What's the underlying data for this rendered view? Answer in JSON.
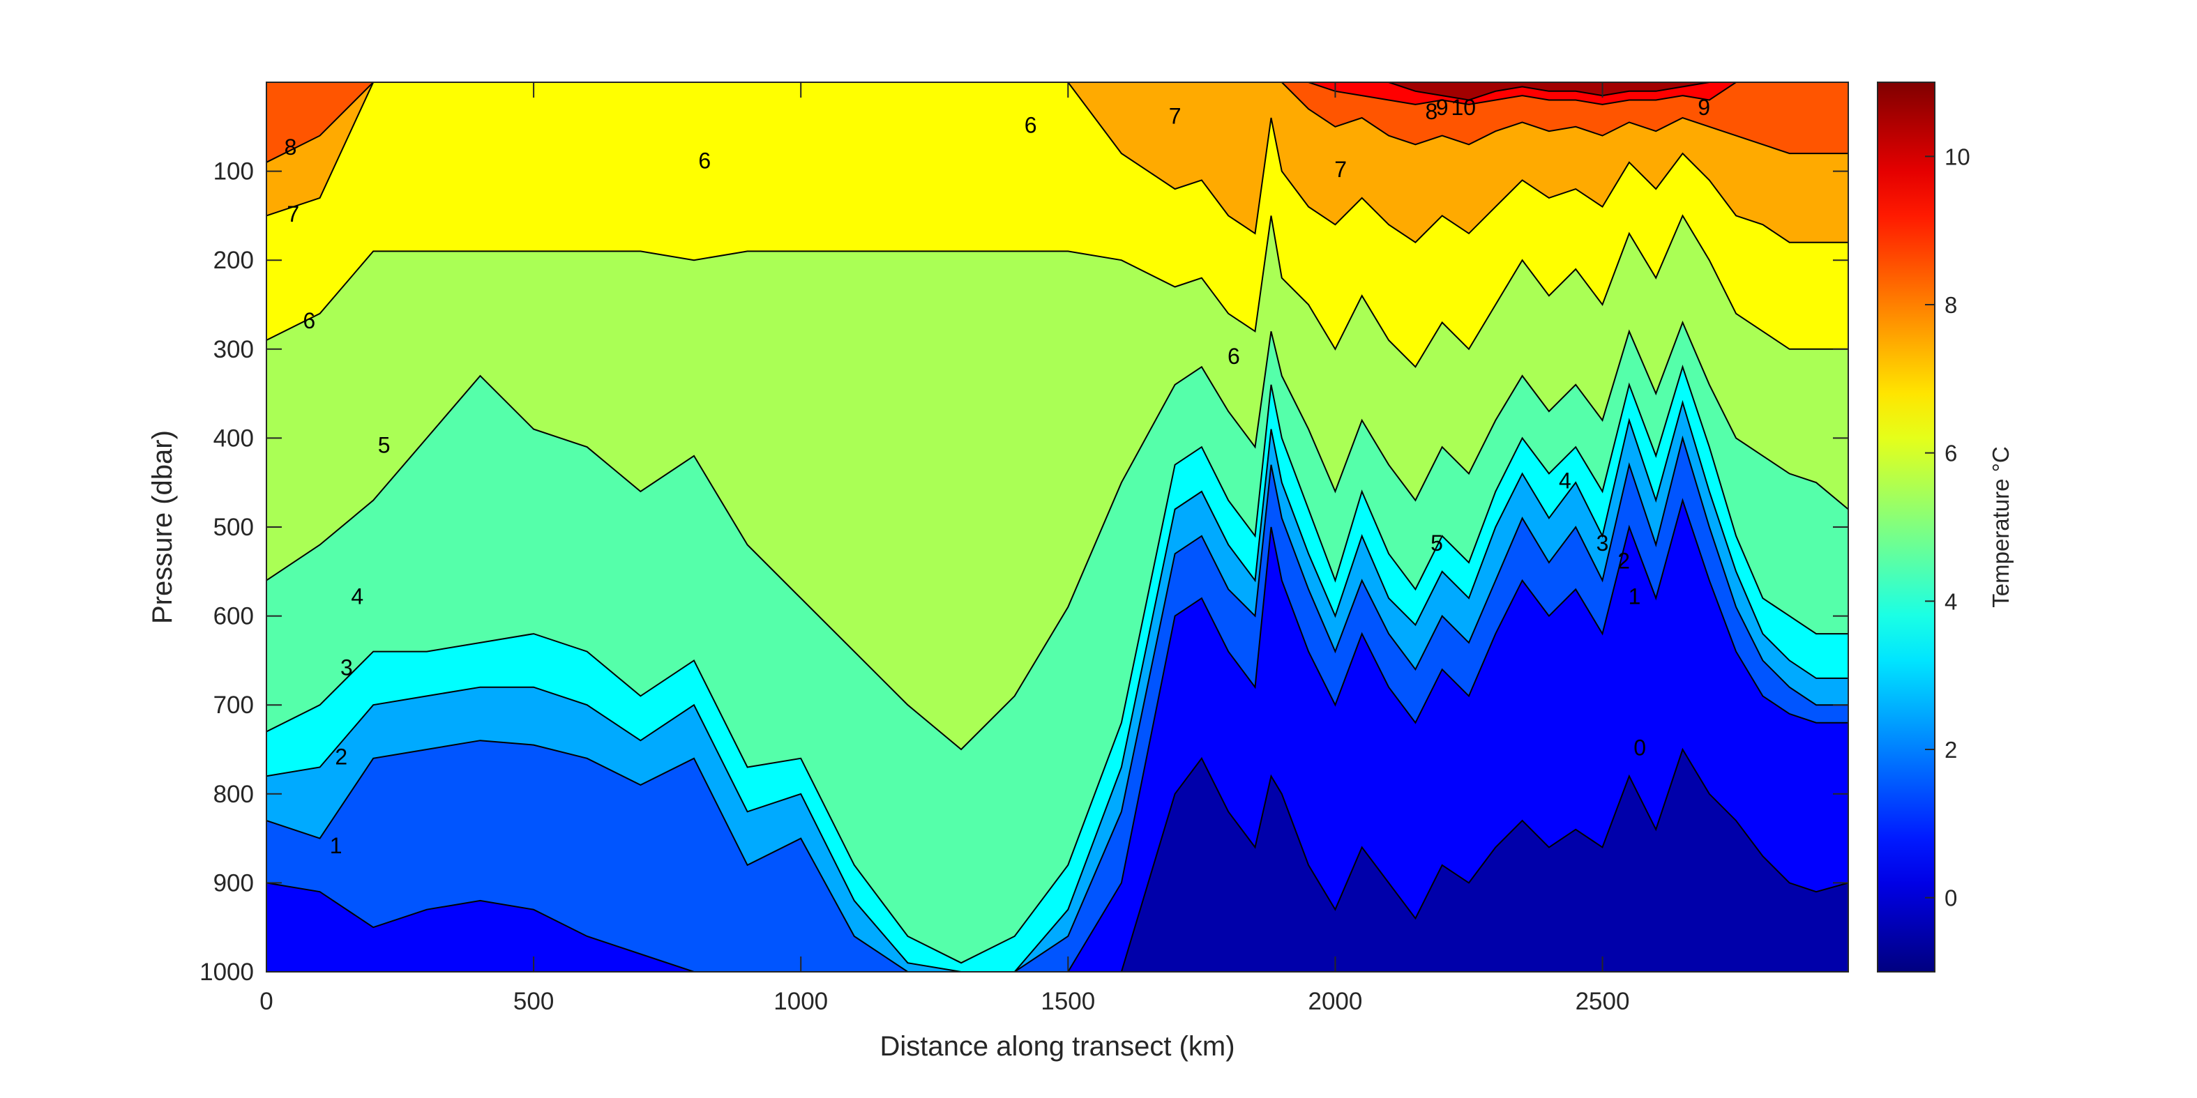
{
  "chart_data": {
    "type": "heatmap",
    "subtype": "filled-contour",
    "title": "",
    "xlabel": "Distance along transect (km)",
    "ylabel": "Pressure (dbar)",
    "colorbar_label": "Temperature °C",
    "colormap": "jet",
    "xlim": [
      0,
      2960
    ],
    "ylim": [
      0,
      1000
    ],
    "y_reversed": true,
    "clim": [
      -1,
      11
    ],
    "x_ticks": [
      0,
      500,
      1000,
      1500,
      2000,
      2500
    ],
    "x_tick_labels": [
      "0",
      "500",
      "1000",
      "1500",
      "2000",
      "2500"
    ],
    "y_ticks": [
      100,
      200,
      300,
      400,
      500,
      600,
      700,
      800,
      900,
      1000
    ],
    "y_tick_labels": [
      "100",
      "200",
      "300",
      "400",
      "500",
      "600",
      "700",
      "800",
      "900",
      "1000"
    ],
    "colorbar_ticks": [
      0,
      2,
      4,
      6,
      8,
      10
    ],
    "colorbar_tick_labels": [
      "0",
      "2",
      "4",
      "6",
      "8",
      "10"
    ],
    "grid": false,
    "contour_levels": [
      0,
      1,
      2,
      3,
      4,
      5,
      6,
      7,
      8,
      9,
      10
    ],
    "isotherm_depths": {
      "x": [
        0,
        100,
        200,
        300,
        400,
        500,
        600,
        700,
        800,
        900,
        1000,
        1100,
        1200,
        1300,
        1400,
        1500,
        1600,
        1700,
        1750,
        1800,
        1850,
        1880,
        1900,
        1950,
        2000,
        2050,
        2100,
        2150,
        2200,
        2250,
        2300,
        2350,
        2400,
        2450,
        2500,
        2550,
        2600,
        2650,
        2700,
        2750,
        2800,
        2850,
        2900,
        2960
      ],
      "t0": [
        1000,
        1000,
        1000,
        1000,
        1000,
        1000,
        1000,
        1000,
        1000,
        1000,
        1000,
        1000,
        1000,
        1000,
        1000,
        1000,
        1000,
        800,
        760,
        820,
        860,
        780,
        800,
        880,
        930,
        860,
        900,
        940,
        880,
        900,
        860,
        830,
        860,
        840,
        860,
        780,
        840,
        750,
        800,
        830,
        870,
        900,
        910,
        900
      ],
      "t1": [
        900,
        910,
        950,
        930,
        920,
        930,
        960,
        980,
        1000,
        1000,
        1000,
        1000,
        1000,
        1000,
        1000,
        1000,
        900,
        600,
        580,
        640,
        680,
        500,
        560,
        640,
        700,
        620,
        680,
        720,
        660,
        690,
        620,
        560,
        600,
        570,
        620,
        500,
        580,
        470,
        560,
        640,
        690,
        710,
        720,
        720
      ],
      "t2": [
        830,
        850,
        760,
        750,
        740,
        745,
        760,
        790,
        760,
        880,
        850,
        960,
        1000,
        1000,
        1000,
        960,
        820,
        530,
        510,
        570,
        600,
        430,
        490,
        570,
        640,
        560,
        620,
        660,
        600,
        630,
        560,
        490,
        540,
        500,
        560,
        430,
        520,
        400,
        500,
        590,
        650,
        680,
        700,
        700
      ],
      "t3": [
        780,
        770,
        700,
        690,
        680,
        680,
        700,
        740,
        700,
        820,
        800,
        920,
        990,
        1000,
        1000,
        930,
        770,
        480,
        460,
        520,
        560,
        390,
        450,
        530,
        600,
        510,
        580,
        610,
        550,
        580,
        500,
        440,
        490,
        450,
        510,
        380,
        470,
        360,
        460,
        550,
        620,
        650,
        670,
        670
      ],
      "t4": [
        730,
        700,
        640,
        640,
        630,
        620,
        640,
        690,
        650,
        770,
        760,
        880,
        960,
        990,
        960,
        880,
        720,
        430,
        410,
        470,
        510,
        340,
        400,
        480,
        560,
        460,
        530,
        570,
        510,
        540,
        460,
        400,
        440,
        410,
        460,
        340,
        420,
        320,
        410,
        510,
        580,
        600,
        620,
        620
      ],
      "t5": [
        560,
        520,
        470,
        400,
        330,
        390,
        410,
        460,
        420,
        520,
        580,
        640,
        700,
        750,
        690,
        590,
        450,
        340,
        320,
        370,
        410,
        280,
        330,
        390,
        460,
        380,
        430,
        470,
        410,
        440,
        380,
        330,
        370,
        340,
        380,
        280,
        350,
        270,
        340,
        400,
        420,
        440,
        450,
        480
      ],
      "t6": [
        290,
        260,
        190,
        190,
        190,
        190,
        190,
        190,
        200,
        190,
        190,
        190,
        190,
        190,
        190,
        190,
        200,
        230,
        220,
        260,
        280,
        150,
        220,
        250,
        300,
        240,
        290,
        320,
        270,
        300,
        250,
        200,
        240,
        210,
        250,
        170,
        220,
        150,
        200,
        260,
        280,
        300,
        300,
        300
      ],
      "t7": [
        150,
        130,
        0,
        0,
        0,
        0,
        0,
        0,
        0,
        0,
        0,
        0,
        0,
        0,
        0,
        0,
        80,
        120,
        110,
        150,
        170,
        40,
        100,
        140,
        160,
        130,
        160,
        180,
        150,
        170,
        140,
        110,
        130,
        120,
        140,
        90,
        120,
        80,
        110,
        150,
        160,
        180,
        180,
        180
      ],
      "t8": [
        90,
        60,
        0,
        0,
        0,
        0,
        0,
        0,
        0,
        0,
        0,
        0,
        0,
        0,
        0,
        0,
        0,
        0,
        0,
        0,
        0,
        0,
        0,
        30,
        50,
        40,
        60,
        70,
        60,
        70,
        55,
        45,
        55,
        50,
        60,
        45,
        55,
        40,
        50,
        60,
        70,
        80,
        80,
        80
      ],
      "t9": [
        0,
        0,
        0,
        0,
        0,
        0,
        0,
        0,
        0,
        0,
        0,
        0,
        0,
        0,
        0,
        0,
        0,
        0,
        0,
        0,
        0,
        0,
        0,
        0,
        10,
        15,
        20,
        25,
        20,
        25,
        20,
        15,
        20,
        20,
        25,
        20,
        20,
        15,
        20,
        0,
        0,
        0,
        0,
        0
      ],
      "t10": [
        0,
        0,
        0,
        0,
        0,
        0,
        0,
        0,
        0,
        0,
        0,
        0,
        0,
        0,
        0,
        0,
        0,
        0,
        0,
        0,
        0,
        0,
        0,
        0,
        0,
        0,
        0,
        10,
        15,
        20,
        10,
        5,
        10,
        10,
        15,
        10,
        10,
        5,
        0,
        0,
        0,
        0,
        0,
        0
      ]
    },
    "contour_labels": [
      {
        "text": "8",
        "x": 45,
        "y": 75
      },
      {
        "text": "7",
        "x": 50,
        "y": 150
      },
      {
        "text": "6",
        "x": 80,
        "y": 270
      },
      {
        "text": "5",
        "x": 220,
        "y": 410
      },
      {
        "text": "4",
        "x": 170,
        "y": 580
      },
      {
        "text": "3",
        "x": 150,
        "y": 660
      },
      {
        "text": "2",
        "x": 140,
        "y": 760
      },
      {
        "text": "1",
        "x": 130,
        "y": 860
      },
      {
        "text": "6",
        "x": 820,
        "y": 90
      },
      {
        "text": "6",
        "x": 1430,
        "y": 50
      },
      {
        "text": "7",
        "x": 1700,
        "y": 40
      },
      {
        "text": "6",
        "x": 1810,
        "y": 310
      },
      {
        "text": "7",
        "x": 2010,
        "y": 100
      },
      {
        "text": "8",
        "x": 2180,
        "y": 35
      },
      {
        "text": "9",
        "x": 2200,
        "y": 30
      },
      {
        "text": "10",
        "x": 2240,
        "y": 30
      },
      {
        "text": "9",
        "x": 2690,
        "y": 30
      },
      {
        "text": "5",
        "x": 2190,
        "y": 520
      },
      {
        "text": "4",
        "x": 2430,
        "y": 450
      },
      {
        "text": "3",
        "x": 2500,
        "y": 520
      },
      {
        "text": "2",
        "x": 2540,
        "y": 540
      },
      {
        "text": "1",
        "x": 2560,
        "y": 580
      },
      {
        "text": "0",
        "x": 2570,
        "y": 750
      }
    ]
  }
}
